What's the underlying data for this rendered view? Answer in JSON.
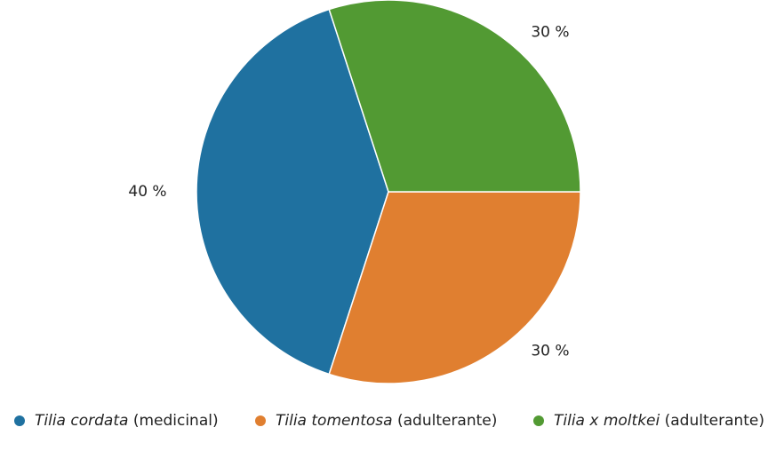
{
  "chart_data": {
    "type": "pie",
    "categories": [
      {
        "species": "Tilia cordata",
        "role": "(medicinal)"
      },
      {
        "species": "Tilia tomentosa",
        "role": "(adulterante)"
      },
      {
        "species": "Tilia x moltkei",
        "role": "(adulterante)"
      }
    ],
    "values": [
      40,
      30,
      30
    ],
    "value_labels": [
      "40 %",
      "30 %",
      "30 %"
    ],
    "colors": [
      "#1f71a0",
      "#e07f30",
      "#529a33"
    ],
    "legend": "bottom"
  }
}
